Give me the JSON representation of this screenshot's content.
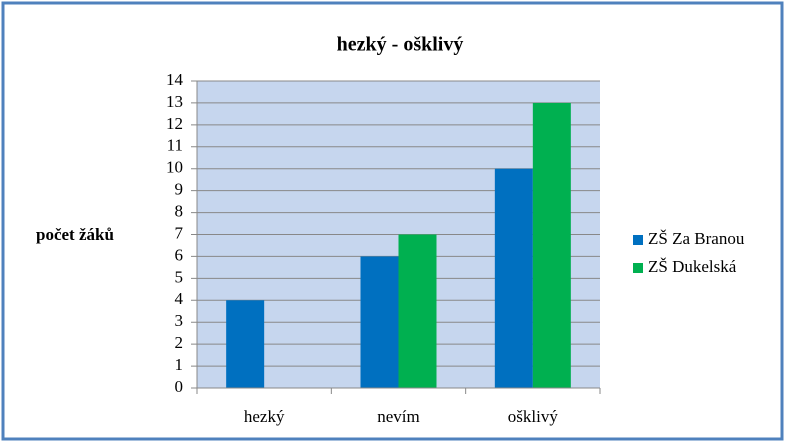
{
  "chart_data": {
    "type": "bar",
    "title": "hezký - ošklivý",
    "y_label": "počet žáků",
    "categories": [
      "hezký",
      "nevím",
      "ošklivý"
    ],
    "series": [
      {
        "name": "ZŠ Za Branou",
        "color": "#0070c0",
        "values": [
          4,
          6,
          10
        ]
      },
      {
        "name": "ZŠ Dukelská",
        "color": "#00b050",
        "values": [
          0,
          7,
          13
        ]
      }
    ],
    "ylim": [
      0,
      14
    ],
    "yticks": [
      0,
      1,
      2,
      3,
      4,
      5,
      6,
      7,
      8,
      9,
      10,
      11,
      12,
      13,
      14
    ],
    "grid": true,
    "legend": "right"
  }
}
